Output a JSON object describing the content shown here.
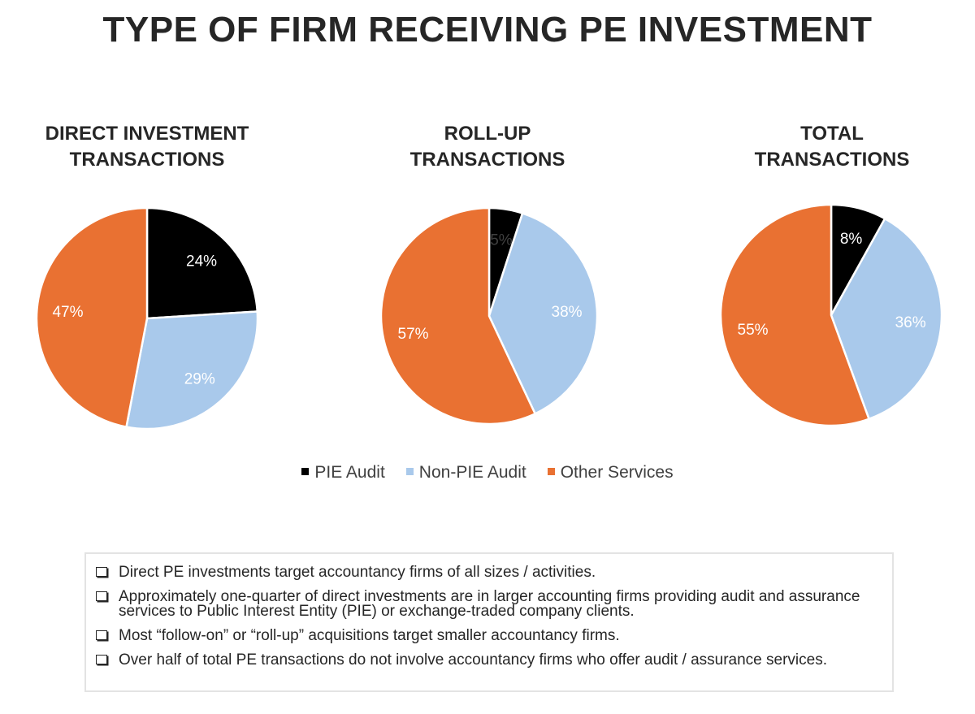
{
  "title": "TYPE OF FIRM RECEIVING PE INVESTMENT",
  "legend": [
    {
      "label": "PIE Audit",
      "color": "#000000"
    },
    {
      "label": "Non-PIE Audit",
      "color": "#a9c9eb"
    },
    {
      "label": "Other Services",
      "color": "#e97132"
    }
  ],
  "chart_data": [
    {
      "type": "pie",
      "title": "DIRECT INVESTMENT TRANSACTIONS",
      "title_lines": [
        "DIRECT INVESTMENT",
        "TRANSACTIONS"
      ],
      "categories": [
        "PIE Audit",
        "Non-PIE Audit",
        "Other Services"
      ],
      "values": [
        24,
        29,
        47
      ],
      "labels": [
        "24%",
        "29%",
        "47%"
      ]
    },
    {
      "type": "pie",
      "title": "ROLL-UP TRANSACTIONS",
      "title_lines": [
        "ROLL-UP",
        "TRANSACTIONS"
      ],
      "categories": [
        "PIE Audit",
        "Non-PIE Audit",
        "Other Services"
      ],
      "values": [
        5,
        38,
        57
      ],
      "labels": [
        "5%",
        "38%",
        "57%"
      ]
    },
    {
      "type": "pie",
      "title": "TOTAL TRANSACTIONS",
      "title_lines": [
        "TOTAL",
        "TRANSACTIONS"
      ],
      "categories": [
        "PIE Audit",
        "Non-PIE Audit",
        "Other Services"
      ],
      "values": [
        8,
        36,
        55
      ],
      "labels": [
        "8%",
        "36%",
        "55%"
      ]
    }
  ],
  "notes": [
    "Direct PE investments target accountancy firms of all sizes / activities.",
    "Approximately one-quarter of direct investments are in larger accounting firms providing audit and assurance services to Public Interest Entity (PIE) or exchange-traded company clients.",
    "Most “follow-on” or “roll-up” acquisitions target smaller accountancy firms.",
    "Over half of total PE transactions do not involve accountancy firms who offer audit / assurance services."
  ]
}
